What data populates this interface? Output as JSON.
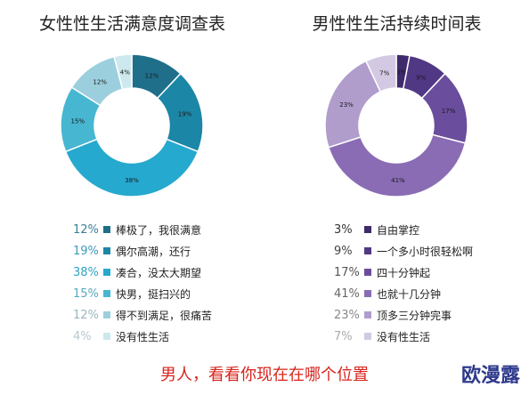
{
  "chart_data": [
    {
      "type": "pie",
      "title": "女性性生活满意度调查表",
      "categories": [
        "棒极了，我很满意",
        "偶尔高潮，还行",
        "凑合，没太大期望",
        "快男，挺扫兴的",
        "得不到满足，很痛苦",
        "没有性生活"
      ],
      "values": [
        12,
        19,
        38,
        15,
        12,
        4
      ],
      "colors": [
        "#1f6f8b",
        "#1b86a6",
        "#26a9cf",
        "#47b6d1",
        "#9ccfdd",
        "#cde8ef"
      ],
      "percent_colors": [
        "#3c7d99",
        "#3c9bbf",
        "#2fa3c5",
        "#58a9c1",
        "#9ab6c1",
        "#b9c9cf"
      ],
      "legend_position": "below",
      "donut": true
    },
    {
      "type": "pie",
      "title": "男性性生活持续时间表",
      "categories": [
        "自由掌控",
        "一个多小时很轻松啊",
        "四十分钟起",
        "也就十几分钟",
        "顶多三分钟完事",
        "没有性生活"
      ],
      "values": [
        3,
        9,
        17,
        41,
        23,
        7
      ],
      "colors": [
        "#3f2a6b",
        "#513884",
        "#6a4d9c",
        "#8a6cb5",
        "#b09dcc",
        "#d3c9e3"
      ],
      "percent_colors": [
        "#333333",
        "#444444",
        "#555555",
        "#666666",
        "#888888",
        "#aaaaaa"
      ],
      "legend_position": "below",
      "donut": true
    }
  ],
  "caption": "男人，看看你现在在哪个位置",
  "watermark": "欧漫露"
}
